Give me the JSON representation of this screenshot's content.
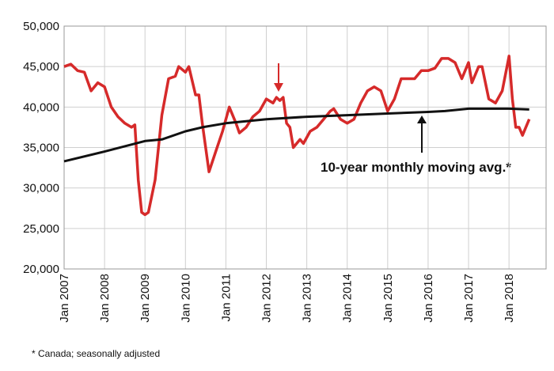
{
  "chart_data": {
    "type": "line",
    "annotation": "10-year monthly moving avg.*",
    "footnote": "* Canada; seasonally adjusted",
    "xlim": [
      "2007-01",
      "2018-12"
    ],
    "xticks": [
      {
        "value": "2007-01",
        "label": "Jan 2007"
      },
      {
        "value": "2008-01",
        "label": "Jan 2008"
      },
      {
        "value": "2009-01",
        "label": "Jan 2009"
      },
      {
        "value": "2010-01",
        "label": "Jan 2010"
      },
      {
        "value": "2011-01",
        "label": "Jan 2011"
      },
      {
        "value": "2012-01",
        "label": "Jan 2012"
      },
      {
        "value": "2013-01",
        "label": "Jan 2013"
      },
      {
        "value": "2014-01",
        "label": "Jan 2014"
      },
      {
        "value": "2015-01",
        "label": "Jan 2015"
      },
      {
        "value": "2016-01",
        "label": "Jan 2016"
      },
      {
        "value": "2017-01",
        "label": "Jan 2017"
      },
      {
        "value": "2018-01",
        "label": "Jan 2018"
      }
    ],
    "ylim": [
      20000,
      50000
    ],
    "yticks": [
      {
        "value": 20000,
        "label": "20,000"
      },
      {
        "value": 25000,
        "label": "25,000"
      },
      {
        "value": 30000,
        "label": "30,000"
      },
      {
        "value": 35000,
        "label": "35,000"
      },
      {
        "value": 40000,
        "label": "40,000"
      },
      {
        "value": 45000,
        "label": "45,000"
      },
      {
        "value": 50000,
        "label": "50,000"
      }
    ],
    "grid": true,
    "series": [
      {
        "color": "#d62a2a",
        "x": [
          "2007-01",
          "2007-03",
          "2007-05",
          "2007-07",
          "2007-09",
          "2007-11",
          "2008-01",
          "2008-03",
          "2008-05",
          "2008-07",
          "2008-09",
          "2008-10",
          "2008-11",
          "2008-12",
          "2009-01",
          "2009-02",
          "2009-04",
          "2009-06",
          "2009-08",
          "2009-10",
          "2009-11",
          "2010-01",
          "2010-02",
          "2010-04",
          "2010-05",
          "2010-06",
          "2010-08",
          "2010-10",
          "2010-12",
          "2011-02",
          "2011-04",
          "2011-05",
          "2011-07",
          "2011-09",
          "2011-11",
          "2012-01",
          "2012-03",
          "2012-04",
          "2012-05",
          "2012-06",
          "2012-07",
          "2012-08",
          "2012-09",
          "2012-11",
          "2012-12",
          "2013-02",
          "2013-04",
          "2013-06",
          "2013-08",
          "2013-09",
          "2013-11",
          "2014-01",
          "2014-03",
          "2014-05",
          "2014-07",
          "2014-09",
          "2014-11",
          "2015-01",
          "2015-03",
          "2015-05",
          "2015-07",
          "2015-09",
          "2015-11",
          "2016-01",
          "2016-03",
          "2016-05",
          "2016-07",
          "2016-09",
          "2016-11",
          "2017-01",
          "2017-02",
          "2017-04",
          "2017-05",
          "2017-07",
          "2017-09",
          "2017-11",
          "2018-01",
          "2018-02",
          "2018-03",
          "2018-04",
          "2018-05",
          "2018-07"
        ],
        "values": [
          45000,
          45300,
          44500,
          44300,
          42000,
          43000,
          42500,
          40000,
          38800,
          38000,
          37500,
          37800,
          31000,
          27000,
          26700,
          27000,
          31000,
          39000,
          43500,
          43800,
          45000,
          44300,
          45000,
          41500,
          41500,
          38000,
          32000,
          34500,
          37000,
          40000,
          38000,
          36800,
          37500,
          38800,
          39500,
          41000,
          40500,
          41200,
          40800,
          41200,
          38000,
          37500,
          35000,
          36000,
          35500,
          37000,
          37500,
          38500,
          39500,
          39800,
          38500,
          38000,
          38500,
          40500,
          42000,
          42500,
          42000,
          39500,
          41000,
          43500,
          43500,
          43500,
          44500,
          44500,
          44800,
          46000,
          46000,
          45500,
          43500,
          45500,
          43000,
          45000,
          45000,
          41000,
          40500,
          42000,
          46300,
          41000,
          37500,
          37500,
          36500,
          38500
        ]
      },
      {
        "color": "#111111",
        "x": [
          "2007-01",
          "2008-01",
          "2009-01",
          "2009-06",
          "2010-01",
          "2010-06",
          "2011-01",
          "2012-01",
          "2013-01",
          "2014-01",
          "2015-01",
          "2016-01",
          "2016-06",
          "2017-01",
          "2018-01",
          "2018-07"
        ],
        "values": [
          33300,
          34500,
          35800,
          36000,
          37000,
          37500,
          38000,
          38500,
          38800,
          39000,
          39200,
          39400,
          39500,
          39800,
          39800,
          39700
        ]
      }
    ]
  }
}
